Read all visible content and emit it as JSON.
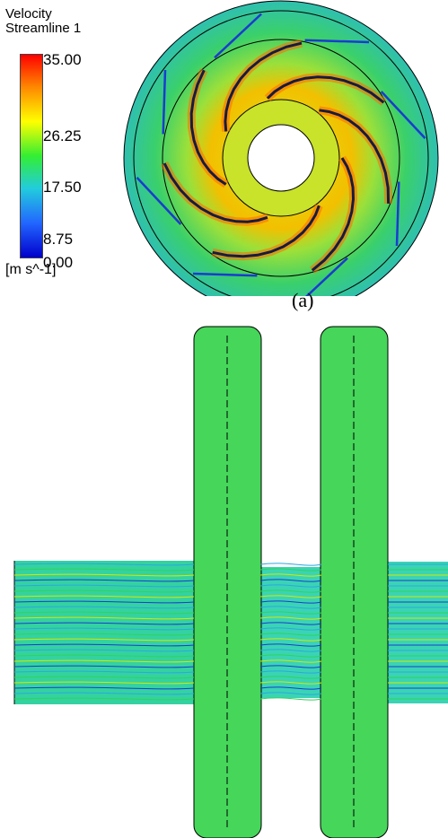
{
  "legend": {
    "title": "Velocity",
    "subtitle": "Streamline 1",
    "ticks": [
      "35.00",
      "26.25",
      "17.50",
      "8.75",
      "0.00"
    ],
    "units": "[m s^-1]",
    "colors": [
      "#ff0000",
      "#ff8800",
      "#ffff00",
      "#33ee33",
      "#22ccdd",
      "#2266ff",
      "#0000cc"
    ]
  },
  "caption_a": "(a)",
  "field_colors": {
    "high": "#ff6a00",
    "mid": "#d6e800",
    "base": "#2ed45a",
    "low": "#2aa8e0",
    "vlow": "#1a3ccf"
  }
}
